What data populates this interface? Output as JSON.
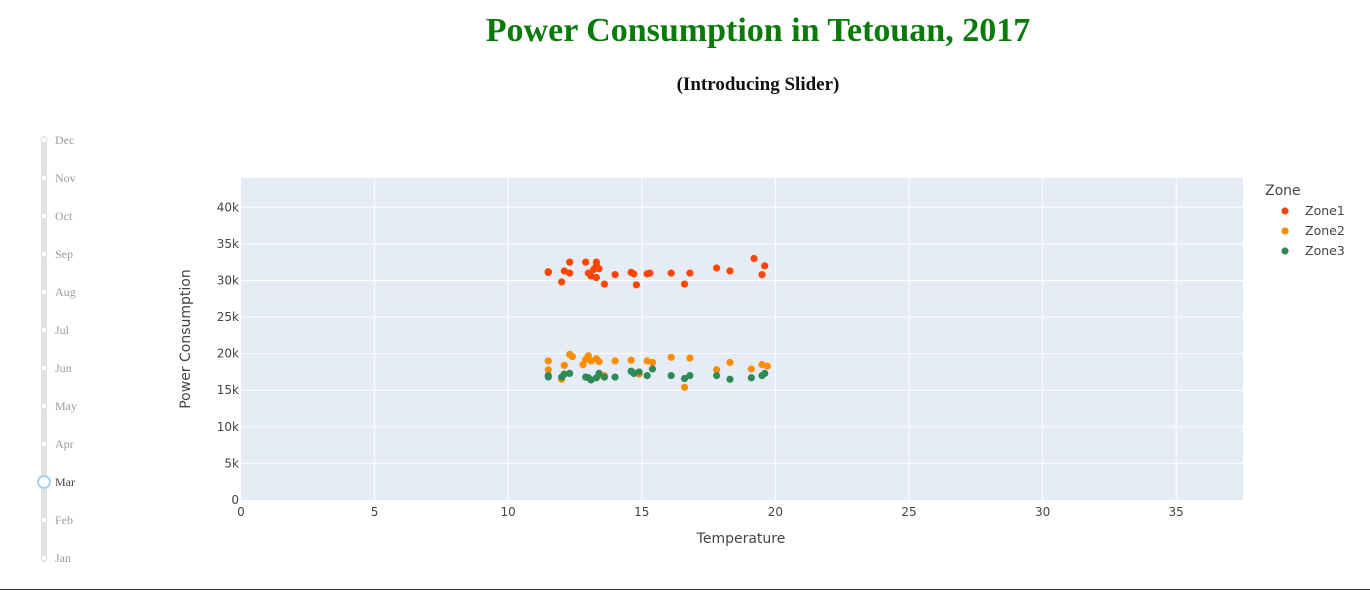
{
  "page": {
    "title": "Power Consumption in Tetouan, 2017",
    "subtitle": "(Introducing Slider)"
  },
  "slider": {
    "months": [
      "Dec",
      "Nov",
      "Oct",
      "Sep",
      "Aug",
      "Jul",
      "Jun",
      "May",
      "Apr",
      "Mar",
      "Feb",
      "Jan"
    ],
    "selected": "Mar"
  },
  "colors": {
    "plot_bg": "#e5ecf6",
    "Zone1": "#ff4500",
    "Zone2": "#ff8c00",
    "Zone3": "#2e8b57",
    "title": "#0a7a0a"
  },
  "chart_data": {
    "type": "scatter",
    "xlabel": "Temperature",
    "ylabel": "Power Consumption",
    "xlim": [
      0,
      37.5
    ],
    "ylim": [
      0,
      44000
    ],
    "xticks": [
      0,
      5,
      10,
      15,
      20,
      25,
      30,
      35
    ],
    "yticks": [
      0,
      5000,
      10000,
      15000,
      20000,
      25000,
      30000,
      35000,
      40000
    ],
    "ytick_labels": [
      "0",
      "5k",
      "10k",
      "15k",
      "20k",
      "25k",
      "30k",
      "35k",
      "40k"
    ],
    "grid": true,
    "legend_title": "Zone",
    "legend_position": "right",
    "series": [
      {
        "name": "Zone1",
        "points": [
          [
            11.5,
            31100
          ],
          [
            11.5,
            31200
          ],
          [
            12.0,
            29800
          ],
          [
            12.1,
            31300
          ],
          [
            12.3,
            31000
          ],
          [
            12.3,
            32500
          ],
          [
            12.9,
            32500
          ],
          [
            13.0,
            31000
          ],
          [
            13.1,
            30600
          ],
          [
            13.2,
            31500
          ],
          [
            13.3,
            32000
          ],
          [
            13.3,
            32500
          ],
          [
            13.3,
            30400
          ],
          [
            13.4,
            31600
          ],
          [
            13.6,
            29500
          ],
          [
            14.0,
            30800
          ],
          [
            14.6,
            31100
          ],
          [
            14.7,
            30900
          ],
          [
            14.8,
            29400
          ],
          [
            15.2,
            30900
          ],
          [
            15.3,
            31000
          ],
          [
            16.1,
            31000
          ],
          [
            16.6,
            29500
          ],
          [
            16.8,
            31000
          ],
          [
            17.8,
            31700
          ],
          [
            18.3,
            31300
          ],
          [
            19.2,
            33000
          ],
          [
            19.5,
            30800
          ],
          [
            19.6,
            32000
          ]
        ]
      },
      {
        "name": "Zone2",
        "points": [
          [
            11.5,
            17800
          ],
          [
            11.5,
            19000
          ],
          [
            12.0,
            16500
          ],
          [
            12.1,
            18400
          ],
          [
            12.3,
            19900
          ],
          [
            12.4,
            19600
          ],
          [
            12.8,
            18500
          ],
          [
            12.9,
            19200
          ],
          [
            13.0,
            19700
          ],
          [
            13.1,
            19000
          ],
          [
            13.3,
            19300
          ],
          [
            13.4,
            18900
          ],
          [
            13.4,
            17000
          ],
          [
            13.6,
            17000
          ],
          [
            14.0,
            19000
          ],
          [
            14.6,
            19100
          ],
          [
            14.7,
            17400
          ],
          [
            14.9,
            17200
          ],
          [
            15.2,
            19000
          ],
          [
            15.4,
            18800
          ],
          [
            16.1,
            19500
          ],
          [
            16.6,
            15400
          ],
          [
            16.8,
            19400
          ],
          [
            17.8,
            17800
          ],
          [
            18.3,
            18800
          ],
          [
            19.1,
            17900
          ],
          [
            19.5,
            18500
          ],
          [
            19.7,
            18300
          ]
        ]
      },
      {
        "name": "Zone3",
        "points": [
          [
            11.5,
            16800
          ],
          [
            11.5,
            17000
          ],
          [
            12.0,
            16800
          ],
          [
            12.1,
            17200
          ],
          [
            12.3,
            17300
          ],
          [
            12.9,
            16800
          ],
          [
            13.0,
            16700
          ],
          [
            13.1,
            16400
          ],
          [
            13.3,
            16700
          ],
          [
            13.4,
            17300
          ],
          [
            13.6,
            16800
          ],
          [
            14.0,
            16800
          ],
          [
            14.6,
            17600
          ],
          [
            14.7,
            17300
          ],
          [
            14.9,
            17500
          ],
          [
            15.2,
            17000
          ],
          [
            15.4,
            17900
          ],
          [
            16.1,
            17000
          ],
          [
            16.6,
            16600
          ],
          [
            16.8,
            17000
          ],
          [
            17.8,
            17000
          ],
          [
            18.3,
            16500
          ],
          [
            19.1,
            16700
          ],
          [
            19.5,
            17000
          ],
          [
            19.6,
            17300
          ]
        ]
      }
    ]
  }
}
